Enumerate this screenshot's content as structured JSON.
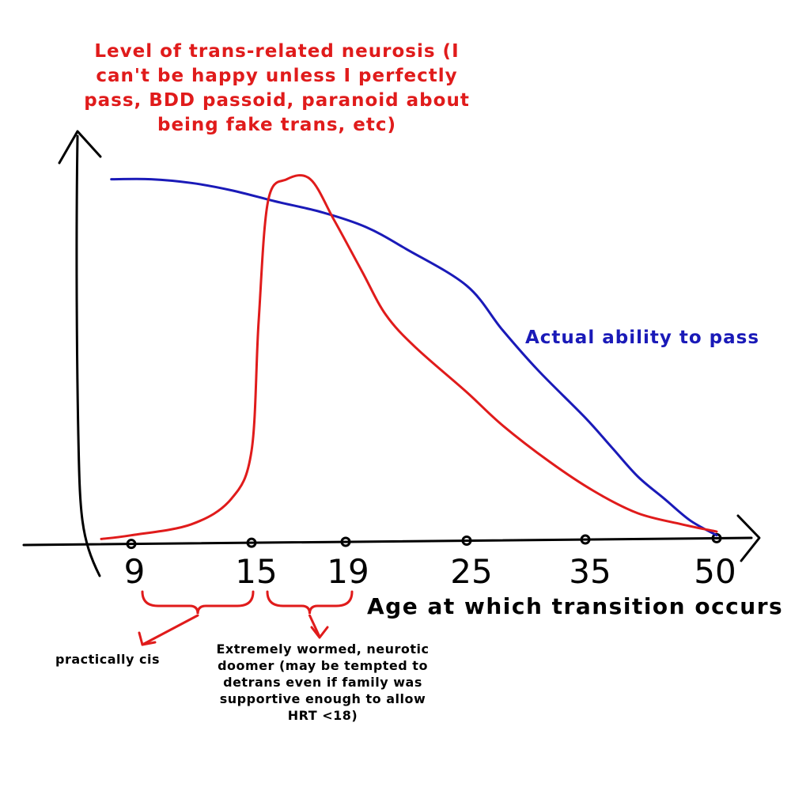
{
  "chart_data": {
    "type": "line",
    "x_axis_label": "Age at which transition occurs",
    "x_ticks": [
      "9",
      "15",
      "19",
      "25",
      "35",
      "50"
    ],
    "series": [
      {
        "name": "Level of trans-related neurosis (I can't be happy unless I perfectly pass, BDD passoid, paranoid about being fake trans, etc)",
        "color": "#e01b1b",
        "points": [
          [
            7.5,
            0.01
          ],
          [
            9,
            0.02
          ],
          [
            12,
            0.05
          ],
          [
            14,
            0.12
          ],
          [
            15,
            0.25
          ],
          [
            15.3,
            0.6
          ],
          [
            15.7,
            0.93
          ],
          [
            16.5,
            0.99
          ],
          [
            17.5,
            0.99
          ],
          [
            18.5,
            0.88
          ],
          [
            19.8,
            0.74
          ],
          [
            21,
            0.62
          ],
          [
            22.5,
            0.53
          ],
          [
            25,
            0.41
          ],
          [
            28,
            0.32
          ],
          [
            32,
            0.22
          ],
          [
            36,
            0.14
          ],
          [
            41,
            0.08
          ],
          [
            46,
            0.05
          ],
          [
            50,
            0.03
          ]
        ]
      },
      {
        "name": "Actual ability to pass",
        "color": "#1a1ab8",
        "points": [
          [
            8,
            0.99
          ],
          [
            10,
            0.99
          ],
          [
            12,
            0.98
          ],
          [
            14,
            0.96
          ],
          [
            16,
            0.93
          ],
          [
            18,
            0.9
          ],
          [
            20,
            0.86
          ],
          [
            22,
            0.8
          ],
          [
            25,
            0.7
          ],
          [
            28,
            0.58
          ],
          [
            31,
            0.47
          ],
          [
            35,
            0.34
          ],
          [
            38,
            0.26
          ],
          [
            41,
            0.18
          ],
          [
            44,
            0.12
          ],
          [
            47,
            0.06
          ],
          [
            50,
            0.02
          ]
        ]
      }
    ],
    "annotations": [
      {
        "text": "practically cis",
        "range": [
          "9",
          "15"
        ]
      },
      {
        "text": "Extremely wormed, neurotic doomer (may be tempted to detrans even if family was supportive enough to allow HRT <18)",
        "range": [
          "15",
          "19"
        ]
      }
    ],
    "colors": {
      "axis": "#000000",
      "neurosis": "#e01b1b",
      "pass": "#1a1ab8"
    }
  }
}
